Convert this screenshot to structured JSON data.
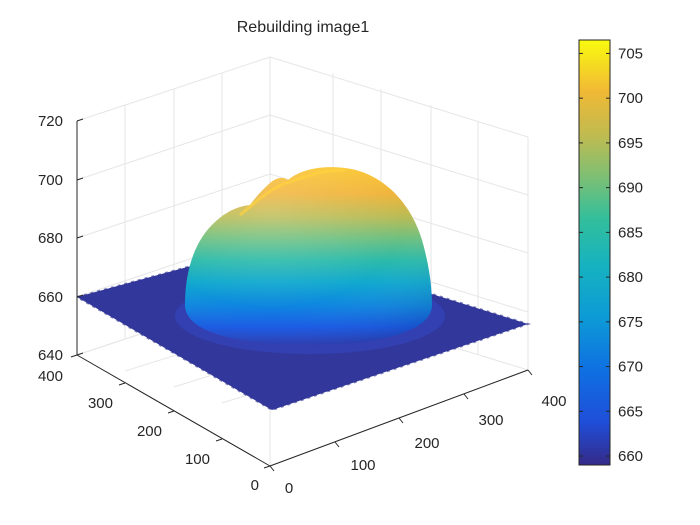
{
  "chart_data": {
    "type": "surface",
    "title": "Rebuilding image1",
    "xlabel": "",
    "ylabel": "",
    "zlabel": "",
    "xlim": [
      0,
      400
    ],
    "ylim": [
      0,
      400
    ],
    "zlim": [
      640,
      720
    ],
    "x_ticks": [
      "0",
      "100",
      "200",
      "300",
      "400"
    ],
    "y_ticks": [
      "0",
      "100",
      "200",
      "300",
      "400"
    ],
    "z_ticks": [
      "640",
      "660",
      "680",
      "700",
      "720"
    ],
    "grid": true,
    "colormap": "parula",
    "baseline_height": 659,
    "dome_peak": 706,
    "colorbar": {
      "range": [
        659,
        706.5
      ],
      "ticks": [
        "660",
        "665",
        "670",
        "675",
        "680",
        "685",
        "690",
        "695",
        "700",
        "705"
      ],
      "location": "right"
    }
  }
}
